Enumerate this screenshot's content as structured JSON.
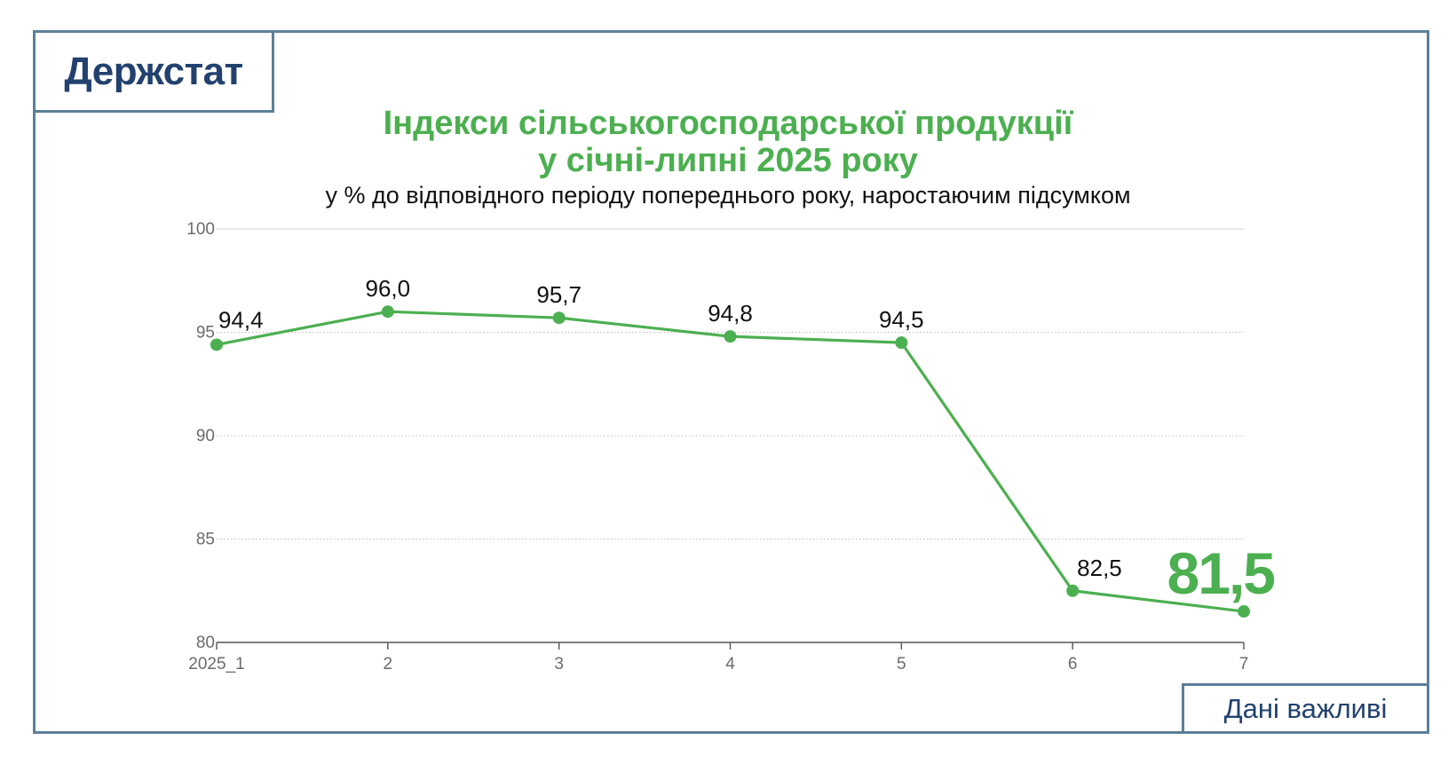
{
  "brand": {
    "name": "Держстат",
    "footer_tag": "Дані важливі"
  },
  "colors": {
    "accent": "#4caf50",
    "frame": "#5c7f99",
    "brand": "#22416e"
  },
  "chart_data": {
    "type": "line",
    "title": "Індекси сільськогосподарської продукції",
    "title_line2": "у січні-липні 2025 року",
    "subtitle": "у % до відповідного періоду попереднього року, наростаючим підсумком",
    "categories": [
      "2025_1",
      "2",
      "3",
      "4",
      "5",
      "6",
      "7"
    ],
    "series": [
      {
        "values": [
          94.4,
          96.0,
          95.7,
          94.8,
          94.5,
          82.5,
          81.5
        ],
        "labels": [
          "94,4",
          "96,0",
          "95,7",
          "94,8",
          "94,5",
          "82,5",
          "81,5"
        ],
        "color": "#4caf50"
      }
    ],
    "highlight_last": true,
    "ylim": [
      80,
      100
    ],
    "yticks": [
      80,
      85,
      90,
      95,
      100
    ],
    "ytick_labels": [
      "80",
      "85",
      "90",
      "95",
      "100"
    ],
    "grid": true,
    "xlabel": "",
    "ylabel": ""
  }
}
